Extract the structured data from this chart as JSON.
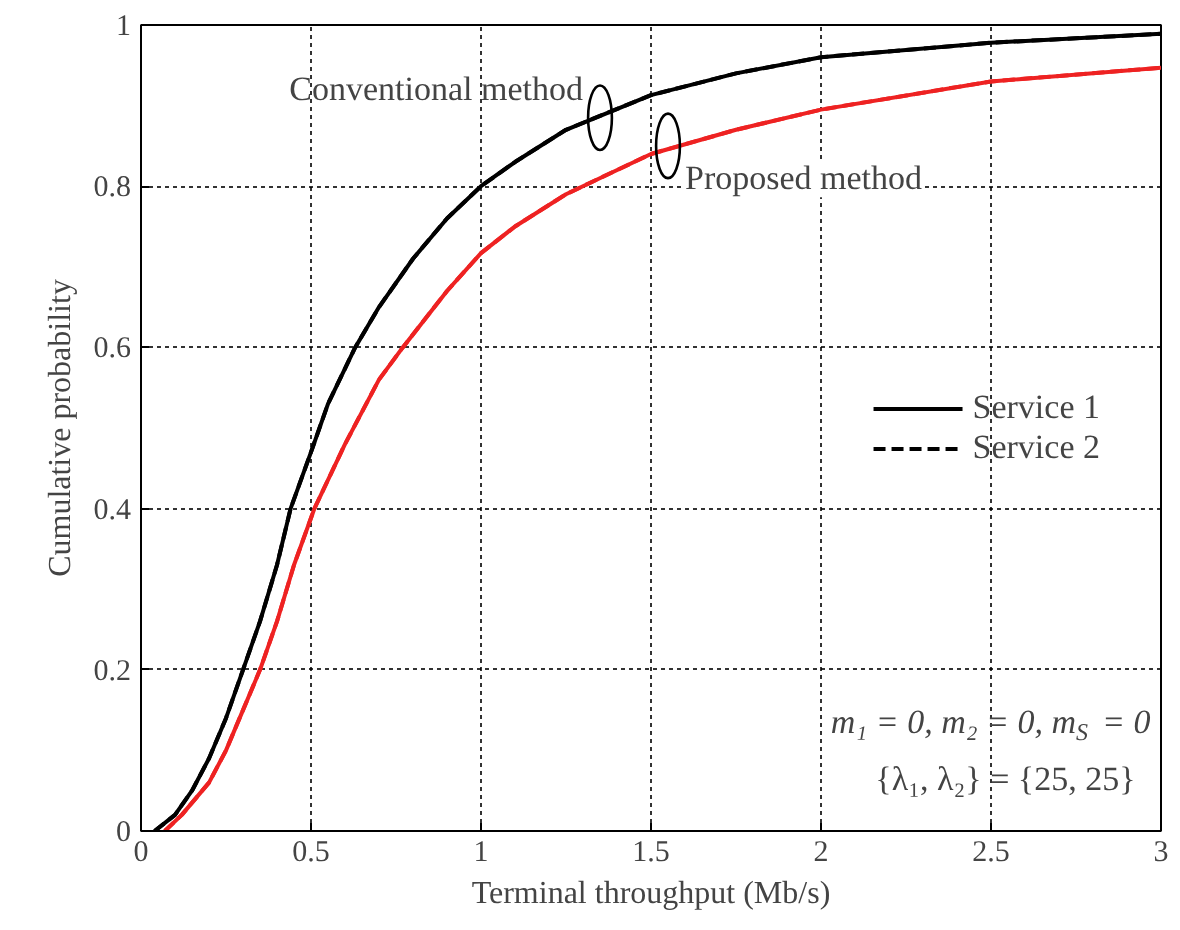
{
  "chart_data": {
    "type": "line",
    "xlabel": "Terminal throughput (Mb/s)",
    "ylabel": "Cumulative probability",
    "xlim": [
      0,
      3
    ],
    "ylim": [
      0,
      1
    ],
    "xticks": [
      0,
      0.5,
      1,
      1.5,
      2,
      2.5,
      3
    ],
    "yticks": [
      0,
      0.2,
      0.4,
      0.6,
      0.8,
      1
    ],
    "grid": true,
    "legend": "right",
    "marker": "none",
    "series": [
      {
        "name": "Service 1",
        "color": "#000000",
        "line_style": "solid",
        "x": [
          0.04,
          0.1,
          0.15,
          0.2,
          0.25,
          0.3,
          0.35,
          0.4,
          0.44,
          0.5,
          0.55,
          0.63,
          0.7,
          0.8,
          0.9,
          1.0,
          1.1,
          1.25,
          1.5,
          1.75,
          2,
          2.5,
          3
        ],
        "values": [
          0,
          0.02,
          0.05,
          0.09,
          0.14,
          0.2,
          0.26,
          0.33,
          0.4,
          0.47,
          0.53,
          0.6,
          0.65,
          0.71,
          0.76,
          0.8,
          0.83,
          0.87,
          0.913,
          0.94,
          0.96,
          0.978,
          0.989
        ]
      },
      {
        "name": "Service 2",
        "color": "#000000",
        "line_style": "dashed",
        "x": [
          0.04,
          0.1,
          0.15,
          0.2,
          0.25,
          0.3,
          0.35,
          0.4,
          0.44,
          0.5,
          0.55,
          0.63,
          0.7,
          0.8,
          0.9,
          1.0,
          1.1,
          1.25,
          1.5,
          1.75,
          2,
          2.5,
          3
        ],
        "values": [
          0,
          0.02,
          0.05,
          0.09,
          0.14,
          0.2,
          0.26,
          0.33,
          0.4,
          0.47,
          0.53,
          0.6,
          0.65,
          0.71,
          0.76,
          0.8,
          0.83,
          0.87,
          0.913,
          0.94,
          0.96,
          0.978,
          0.989
        ]
      },
      {
        "color": "#ee2222",
        "line_style": "solid",
        "x": [
          0.07,
          0.12,
          0.2,
          0.25,
          0.3,
          0.35,
          0.4,
          0.45,
          0.51,
          0.6,
          0.7,
          0.77,
          0.9,
          1.0,
          1.1,
          1.25,
          1.5,
          1.75,
          2,
          2.5,
          3
        ],
        "values": [
          0,
          0.02,
          0.06,
          0.1,
          0.15,
          0.2,
          0.26,
          0.33,
          0.4,
          0.48,
          0.56,
          0.6,
          0.67,
          0.717,
          0.75,
          0.79,
          0.84,
          0.87,
          0.895,
          0.93,
          0.947
        ]
      },
      {
        "color": "#ee2222",
        "line_style": "dashed",
        "x": [
          0.07,
          0.12,
          0.2,
          0.25,
          0.3,
          0.35,
          0.4,
          0.45,
          0.51,
          0.6,
          0.7,
          0.77,
          0.9,
          1.0,
          1.1,
          1.25,
          1.5,
          1.75,
          2,
          2.5,
          3
        ],
        "values": [
          0,
          0.02,
          0.06,
          0.1,
          0.15,
          0.2,
          0.26,
          0.33,
          0.4,
          0.48,
          0.56,
          0.6,
          0.67,
          0.717,
          0.75,
          0.79,
          0.84,
          0.87,
          0.895,
          0.93,
          0.947
        ]
      }
    ],
    "annotations": [
      {
        "text": "Conventional method",
        "x": 1.35,
        "y": 0.885
      },
      {
        "text": "Proposed method",
        "x": 1.55,
        "y": 0.85
      },
      "m₁ = 0, m₂ = 0, m$_{S}$ = 0",
      "{λ₁,  λ₂} = {25, 25}"
    ]
  }
}
